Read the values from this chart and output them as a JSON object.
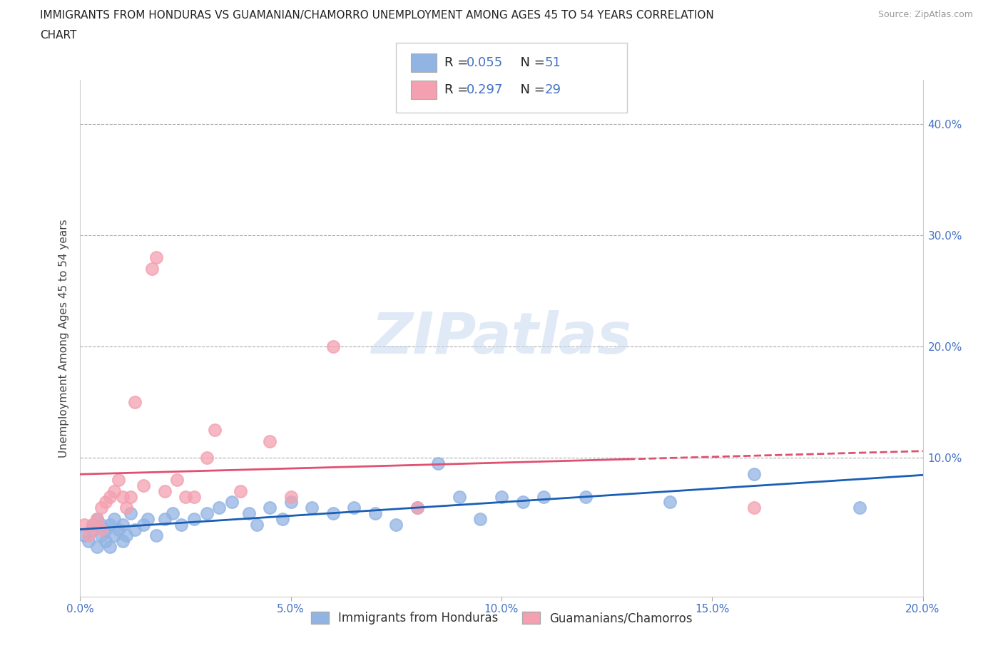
{
  "title_line1": "IMMIGRANTS FROM HONDURAS VS GUAMANIAN/CHAMORRO UNEMPLOYMENT AMONG AGES 45 TO 54 YEARS CORRELATION",
  "title_line2": "CHART",
  "source_text": "Source: ZipAtlas.com",
  "ylabel": "Unemployment Among Ages 45 to 54 years",
  "xlim": [
    0,
    0.2
  ],
  "ylim": [
    -0.025,
    0.44
  ],
  "xticks": [
    0.0,
    0.05,
    0.1,
    0.15,
    0.2
  ],
  "yticks": [
    0.0,
    0.1,
    0.2,
    0.3,
    0.4
  ],
  "r_blue": 0.055,
  "n_blue": 51,
  "r_pink": 0.297,
  "n_pink": 29,
  "watermark": "ZIPatlas",
  "legend_label_blue": "Immigrants from Honduras",
  "legend_label_pink": "Guamanians/Chamorros",
  "blue_color": "#92b4e3",
  "pink_color": "#f4a0b0",
  "trendline_blue_color": "#1a5fb4",
  "trendline_pink_color": "#e05070",
  "blue_scatter_x": [
    0.001,
    0.002,
    0.003,
    0.003,
    0.004,
    0.004,
    0.005,
    0.005,
    0.006,
    0.006,
    0.007,
    0.007,
    0.008,
    0.008,
    0.009,
    0.01,
    0.01,
    0.011,
    0.012,
    0.013,
    0.015,
    0.016,
    0.018,
    0.02,
    0.022,
    0.024,
    0.027,
    0.03,
    0.033,
    0.036,
    0.04,
    0.042,
    0.045,
    0.048,
    0.05,
    0.055,
    0.06,
    0.065,
    0.07,
    0.075,
    0.08,
    0.085,
    0.09,
    0.095,
    0.1,
    0.105,
    0.11,
    0.12,
    0.14,
    0.16,
    0.185
  ],
  "blue_scatter_y": [
    0.03,
    0.025,
    0.035,
    0.04,
    0.02,
    0.045,
    0.03,
    0.04,
    0.025,
    0.035,
    0.02,
    0.04,
    0.03,
    0.045,
    0.035,
    0.025,
    0.04,
    0.03,
    0.05,
    0.035,
    0.04,
    0.045,
    0.03,
    0.045,
    0.05,
    0.04,
    0.045,
    0.05,
    0.055,
    0.06,
    0.05,
    0.04,
    0.055,
    0.045,
    0.06,
    0.055,
    0.05,
    0.055,
    0.05,
    0.04,
    0.055,
    0.095,
    0.065,
    0.045,
    0.065,
    0.06,
    0.065,
    0.065,
    0.06,
    0.085,
    0.055
  ],
  "pink_scatter_x": [
    0.001,
    0.002,
    0.003,
    0.004,
    0.005,
    0.005,
    0.006,
    0.007,
    0.008,
    0.009,
    0.01,
    0.011,
    0.012,
    0.013,
    0.015,
    0.017,
    0.018,
    0.02,
    0.023,
    0.025,
    0.027,
    0.03,
    0.032,
    0.038,
    0.045,
    0.05,
    0.06,
    0.08,
    0.16
  ],
  "pink_scatter_y": [
    0.04,
    0.03,
    0.04,
    0.045,
    0.035,
    0.055,
    0.06,
    0.065,
    0.07,
    0.08,
    0.065,
    0.055,
    0.065,
    0.15,
    0.075,
    0.27,
    0.28,
    0.07,
    0.08,
    0.065,
    0.065,
    0.1,
    0.125,
    0.07,
    0.115,
    0.065,
    0.2,
    0.055,
    0.055
  ],
  "pink_trendline_solid_end": 0.13,
  "pink_trendline_dashed_end": 0.2
}
